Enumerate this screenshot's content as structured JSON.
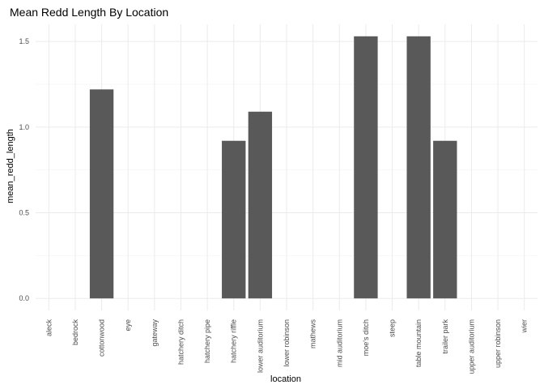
{
  "chart_data": {
    "type": "bar",
    "title": "Mean Redd Length By Location",
    "xlabel": "location",
    "ylabel": "mean_redd_length",
    "categories": [
      "aleck",
      "bedrock",
      "cottonwood",
      "eye",
      "gateway",
      "hatchery ditch",
      "hatchery pipe",
      "hatchery riffle",
      "lower auditorium",
      "lower robinson",
      "mathews",
      "mid auditorium",
      "moe's ditch",
      "steep",
      "table mountain",
      "trailer park",
      "upper auditorium",
      "upper robinson",
      "wier"
    ],
    "values": [
      0,
      0,
      1.22,
      0,
      0,
      0,
      0,
      0.92,
      1.09,
      0,
      0,
      0,
      1.53,
      0,
      1.53,
      0.92,
      0,
      0,
      0
    ],
    "yticks": [
      0.0,
      0.5,
      1.0,
      1.5
    ],
    "ytick_labels": [
      "0.0",
      "0.5",
      "1.0",
      "1.5"
    ],
    "ylim": [
      -0.07,
      1.6
    ],
    "grid": true,
    "color": "#595959",
    "grid_color": "#ebebeb"
  }
}
